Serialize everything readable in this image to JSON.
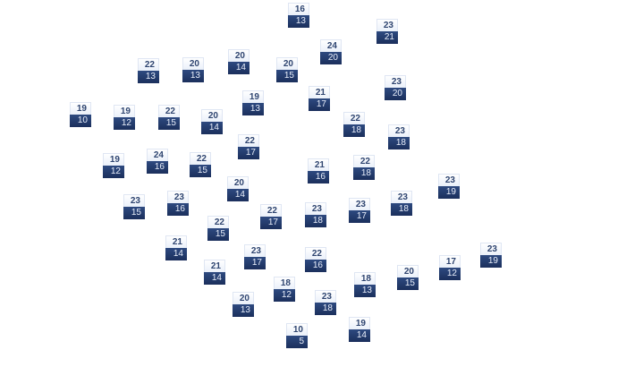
{
  "colors": {
    "high_bg": "#eaf0fa",
    "high_text": "#2f4570",
    "low_bg": "#1f3566",
    "low_text": "#e8eefa"
  },
  "stations": [
    {
      "high": "16",
      "low": "13"
    },
    {
      "high": "23",
      "low": "21"
    },
    {
      "high": "24",
      "low": "20"
    },
    {
      "high": "22",
      "low": "13"
    },
    {
      "high": "20",
      "low": "13"
    },
    {
      "high": "20",
      "low": "14"
    },
    {
      "high": "20",
      "low": "15"
    },
    {
      "high": "23",
      "low": "20"
    },
    {
      "high": "19",
      "low": "13"
    },
    {
      "high": "21",
      "low": "17"
    },
    {
      "high": "19",
      "low": "10"
    },
    {
      "high": "19",
      "low": "12"
    },
    {
      "high": "22",
      "low": "15"
    },
    {
      "high": "20",
      "low": "14"
    },
    {
      "high": "22",
      "low": "18"
    },
    {
      "high": "23",
      "low": "18"
    },
    {
      "high": "22",
      "low": "17"
    },
    {
      "high": "21",
      "low": "16"
    },
    {
      "high": "22",
      "low": "18"
    },
    {
      "high": "19",
      "low": "12"
    },
    {
      "high": "24",
      "low": "16"
    },
    {
      "high": "22",
      "low": "15"
    },
    {
      "high": "23",
      "low": "19"
    },
    {
      "high": "20",
      "low": "14"
    },
    {
      "high": "23",
      "low": "15"
    },
    {
      "high": "23",
      "low": "16"
    },
    {
      "high": "23",
      "low": "18"
    },
    {
      "high": "23",
      "low": "17"
    },
    {
      "high": "22",
      "low": "17"
    },
    {
      "high": "23",
      "low": "18"
    },
    {
      "high": "22",
      "low": "15"
    },
    {
      "high": "21",
      "low": "14"
    },
    {
      "high": "23",
      "low": "17"
    },
    {
      "high": "22",
      "low": "16"
    },
    {
      "high": "23",
      "low": "19"
    },
    {
      "high": "21",
      "low": "14"
    },
    {
      "high": "17",
      "low": "12"
    },
    {
      "high": "20",
      "low": "15"
    },
    {
      "high": "18",
      "low": "13"
    },
    {
      "high": "18",
      "low": "12"
    },
    {
      "high": "20",
      "low": "13"
    },
    {
      "high": "23",
      "low": "18"
    },
    {
      "high": "10",
      "low": "5"
    },
    {
      "high": "19",
      "low": "14"
    }
  ]
}
